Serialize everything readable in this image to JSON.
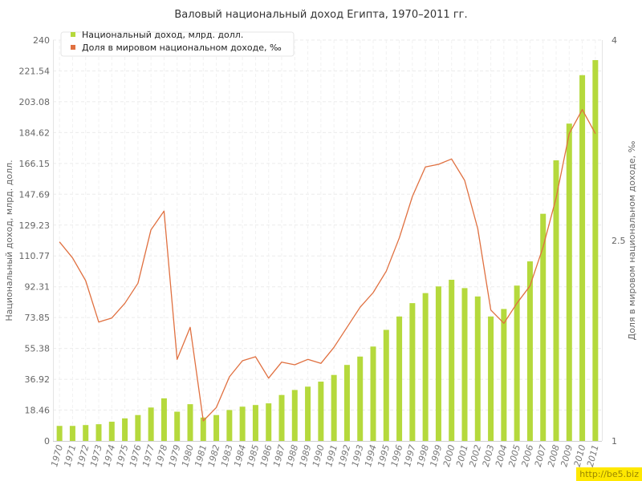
{
  "chart_data": {
    "type": "bar",
    "title": "Валовый национальный доход Египта, 1970–2011 гг.",
    "ylabel": "Национальный доход, млрд. долл.",
    "y2label": "Доля в мировом национальном доходе, ‰",
    "ylim": [
      0,
      240
    ],
    "y2lim": [
      1,
      4
    ],
    "yticks": [
      "0",
      "18.46",
      "36.92",
      "55.38",
      "73.85",
      "92.31",
      "110.77",
      "129.23",
      "147.69",
      "166.15",
      "184.62",
      "203.08",
      "221.54",
      "240"
    ],
    "y2ticks": [
      "1",
      "2.5",
      "4"
    ],
    "grid": true,
    "legend_position": "top-left",
    "categories": [
      "1970",
      "1971",
      "1972",
      "1973",
      "1974",
      "1975",
      "1976",
      "1977",
      "1978",
      "1979",
      "1980",
      "1981",
      "1982",
      "1983",
      "1984",
      "1985",
      "1986",
      "1987",
      "1988",
      "1989",
      "1990",
      "1991",
      "1992",
      "1993",
      "1994",
      "1995",
      "1996",
      "1997",
      "1998",
      "1999",
      "2000",
      "2001",
      "2002",
      "2003",
      "2004",
      "2005",
      "2006",
      "2007",
      "2008",
      "2009",
      "2010",
      "2011"
    ],
    "series": [
      {
        "name": "Национальный доход, млрд. долл.",
        "type": "bar",
        "axis": "left",
        "color": "#b5d93c",
        "values": [
          9,
          9,
          9.5,
          10,
          11.5,
          13.5,
          15.5,
          20,
          25.5,
          17.5,
          22,
          14,
          15.5,
          18.5,
          20.5,
          21.5,
          22.5,
          27.5,
          30.5,
          32.5,
          35.5,
          39.5,
          45.5,
          50.5,
          56.5,
          66.5,
          74.5,
          82.5,
          88.5,
          92.5,
          96.5,
          91.5,
          86.5,
          74.5,
          79,
          93,
          107.5,
          136,
          168,
          190,
          219,
          228
        ]
      },
      {
        "name": "Доля в мировом национальном доходе, ‰",
        "type": "line",
        "axis": "right",
        "color": "#e07040",
        "values": [
          2.49,
          2.37,
          2.2,
          1.89,
          1.92,
          2.03,
          2.18,
          2.58,
          2.72,
          1.61,
          1.85,
          1.15,
          1.25,
          1.48,
          1.6,
          1.63,
          1.47,
          1.59,
          1.57,
          1.61,
          1.58,
          1.7,
          1.85,
          2.0,
          2.11,
          2.27,
          2.52,
          2.83,
          3.05,
          3.07,
          3.11,
          2.95,
          2.59,
          1.98,
          1.88,
          2.03,
          2.16,
          2.45,
          2.82,
          3.3,
          3.48,
          3.3
        ]
      }
    ]
  },
  "watermark": "http://be5.biz"
}
